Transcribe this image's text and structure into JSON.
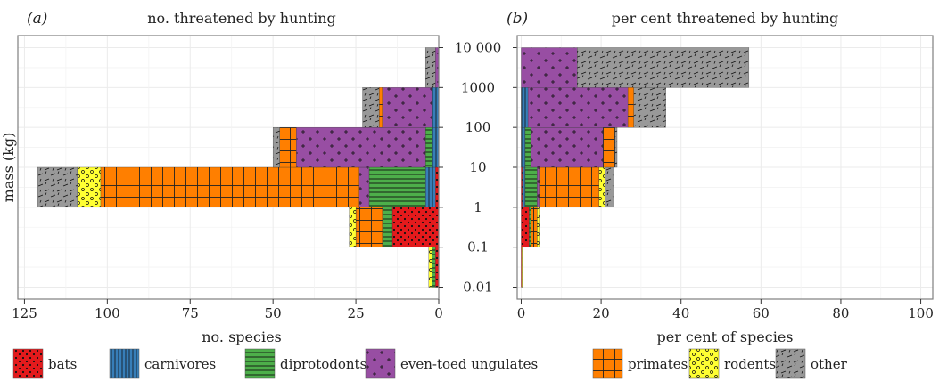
{
  "colors": {
    "bats": "#e41a1c",
    "carnivores": "#377eb8",
    "diprotodonts": "#4daf4a",
    "even_toed_ungulates": "#984ea3",
    "primates": "#ff7f00",
    "rodents": "#ffff33",
    "other": "#999999",
    "grid": "#ebebeb",
    "border": "#7f7f7f"
  },
  "legend": [
    {
      "key": "bats",
      "label": "bats",
      "pattern": "dots-icon"
    },
    {
      "key": "carnivores",
      "label": "carnivores",
      "pattern": "vertical-lines-icon"
    },
    {
      "key": "diprotodonts",
      "label": "diprotodonts",
      "pattern": "horizontal-lines-icon"
    },
    {
      "key": "even_toed_ungulates",
      "label": "even-toed ungulates",
      "pattern": "plus-marks-icon"
    },
    {
      "key": "primates",
      "label": "primates",
      "pattern": "grid-icon"
    },
    {
      "key": "rodents",
      "label": "rodents",
      "pattern": "circles-icon"
    },
    {
      "key": "other",
      "label": "other",
      "pattern": "dashes-icon"
    }
  ],
  "shared": {
    "ylabel": "mass (kg)",
    "y_ticks": [
      "0.01",
      "0.1",
      "1",
      "10",
      "100",
      "1000",
      "10 000"
    ],
    "y_scale": "log10",
    "ylim": [
      0.005,
      20000
    ],
    "mass_bins": [
      "0.01-0.1",
      "0.1-1",
      "1-10",
      "10-100",
      "100-1000",
      "1000-10000"
    ],
    "stack_order": [
      "bats",
      "carnivores",
      "diprotodonts",
      "even_toed_ungulates",
      "primates",
      "rodents",
      "other"
    ]
  },
  "chart_data": [
    {
      "type": "bar",
      "orientation": "horizontal",
      "panel_label": "(a)",
      "title": "no. threatened by hunting",
      "xlabel": "no. species",
      "x_reversed": true,
      "xlim": [
        0,
        127
      ],
      "x_ticks": [
        0,
        25,
        50,
        75,
        100,
        125
      ],
      "grid": true,
      "series": [
        {
          "name": "bats",
          "values": [
            1,
            14,
            1,
            0,
            0,
            0
          ]
        },
        {
          "name": "carnivores",
          "values": [
            0,
            0,
            3,
            2,
            2,
            0
          ]
        },
        {
          "name": "diprotodonts",
          "values": [
            1,
            3,
            17,
            2,
            0,
            0
          ]
        },
        {
          "name": "even_toed_ungulates",
          "values": [
            0,
            0,
            3,
            39,
            15,
            1
          ]
        },
        {
          "name": "primates",
          "values": [
            0,
            8,
            78,
            5,
            1,
            0
          ]
        },
        {
          "name": "rodents",
          "values": [
            1,
            2,
            7,
            0,
            0,
            0
          ]
        },
        {
          "name": "other",
          "values": [
            0,
            0,
            12,
            2,
            5,
            3
          ]
        }
      ]
    },
    {
      "type": "bar",
      "orientation": "horizontal",
      "panel_label": "(b)",
      "title": "per cent threatened by hunting",
      "xlabel": "per cent of species",
      "x_reversed": false,
      "xlim": [
        -1,
        103
      ],
      "x_ticks": [
        0,
        20,
        40,
        60,
        80,
        100
      ],
      "grid": true,
      "series": [
        {
          "name": "bats",
          "values": [
            0.2,
            2,
            0.3,
            0,
            0,
            0
          ]
        },
        {
          "name": "carnivores",
          "values": [
            0,
            0,
            0.7,
            1,
            1.7,
            0
          ]
        },
        {
          "name": "diprotodonts",
          "values": [
            0,
            0.5,
            3,
            1.5,
            0,
            0
          ]
        },
        {
          "name": "even_toed_ungulates",
          "values": [
            0,
            0,
            0.5,
            18,
            25,
            14
          ]
        },
        {
          "name": "primates",
          "values": [
            0,
            1.5,
            15,
            3,
            1.5,
            0
          ]
        },
        {
          "name": "rodents",
          "values": [
            0.3,
            0.5,
            1.5,
            0,
            0,
            0
          ]
        },
        {
          "name": "other",
          "values": [
            0,
            0,
            2,
            0.5,
            8,
            43
          ]
        }
      ]
    }
  ]
}
